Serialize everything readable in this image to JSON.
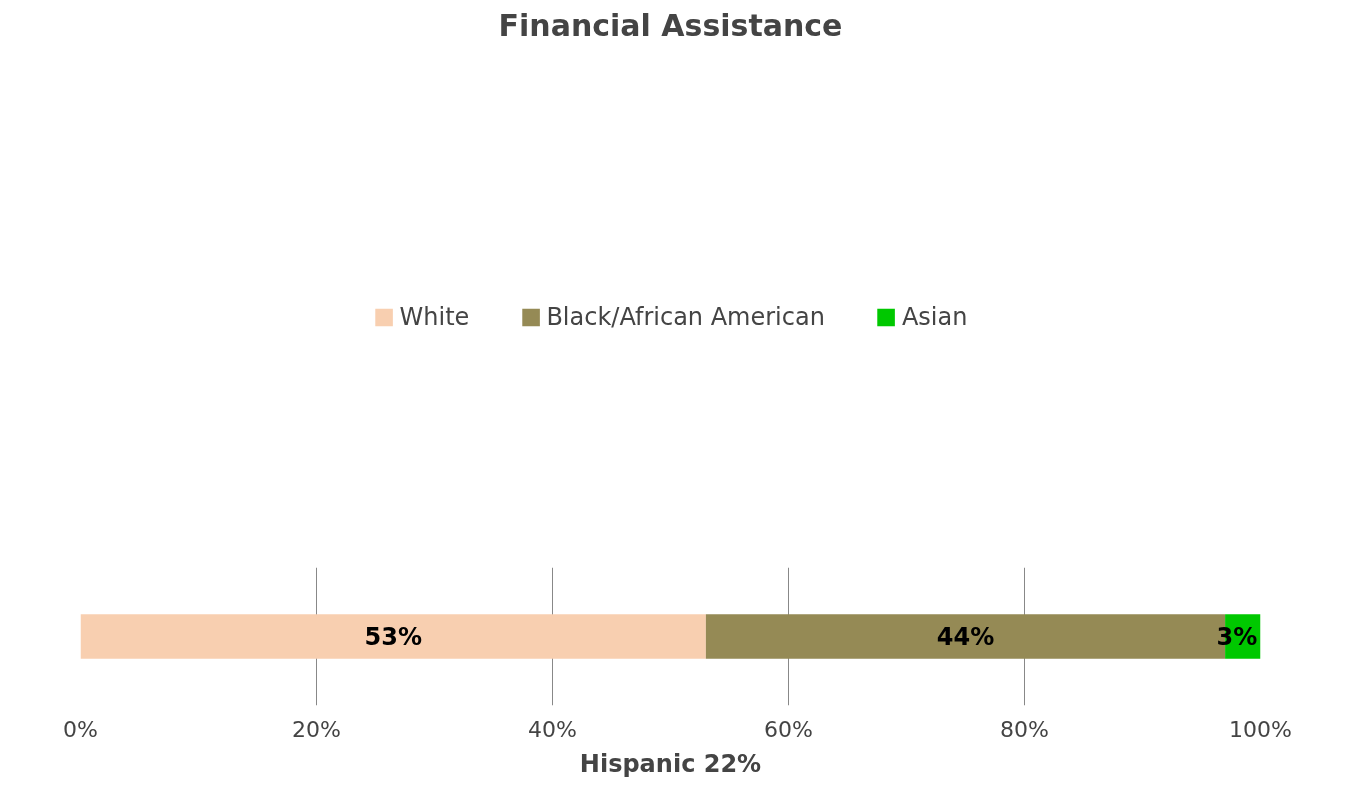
{
  "chart_data": {
    "type": "bar",
    "orientation": "horizontal",
    "stacked": true,
    "title": "Financial Assistance",
    "xlabel": "Hispanic 22%",
    "categories": [
      null
    ],
    "series": [
      {
        "name": "White",
        "color": "#f8cfb0",
        "values": [
          53
        ],
        "value_labels": [
          "53%"
        ]
      },
      {
        "name": "Black/African American",
        "color": "#958a55",
        "values": [
          44
        ],
        "value_labels": [
          "44%"
        ]
      },
      {
        "name": "Asian",
        "color": "#00c800",
        "values": [
          3
        ],
        "value_labels": [
          "3%"
        ]
      }
    ],
    "xlim": [
      0,
      100
    ],
    "xticks": [
      {
        "value": 0,
        "label": "0%"
      },
      {
        "value": 20,
        "label": "20%"
      },
      {
        "value": 40,
        "label": "40%"
      },
      {
        "value": 60,
        "label": "60%"
      },
      {
        "value": 80,
        "label": "80%"
      },
      {
        "value": 100,
        "label": "100%"
      }
    ],
    "grid": "x",
    "legend": "top"
  }
}
